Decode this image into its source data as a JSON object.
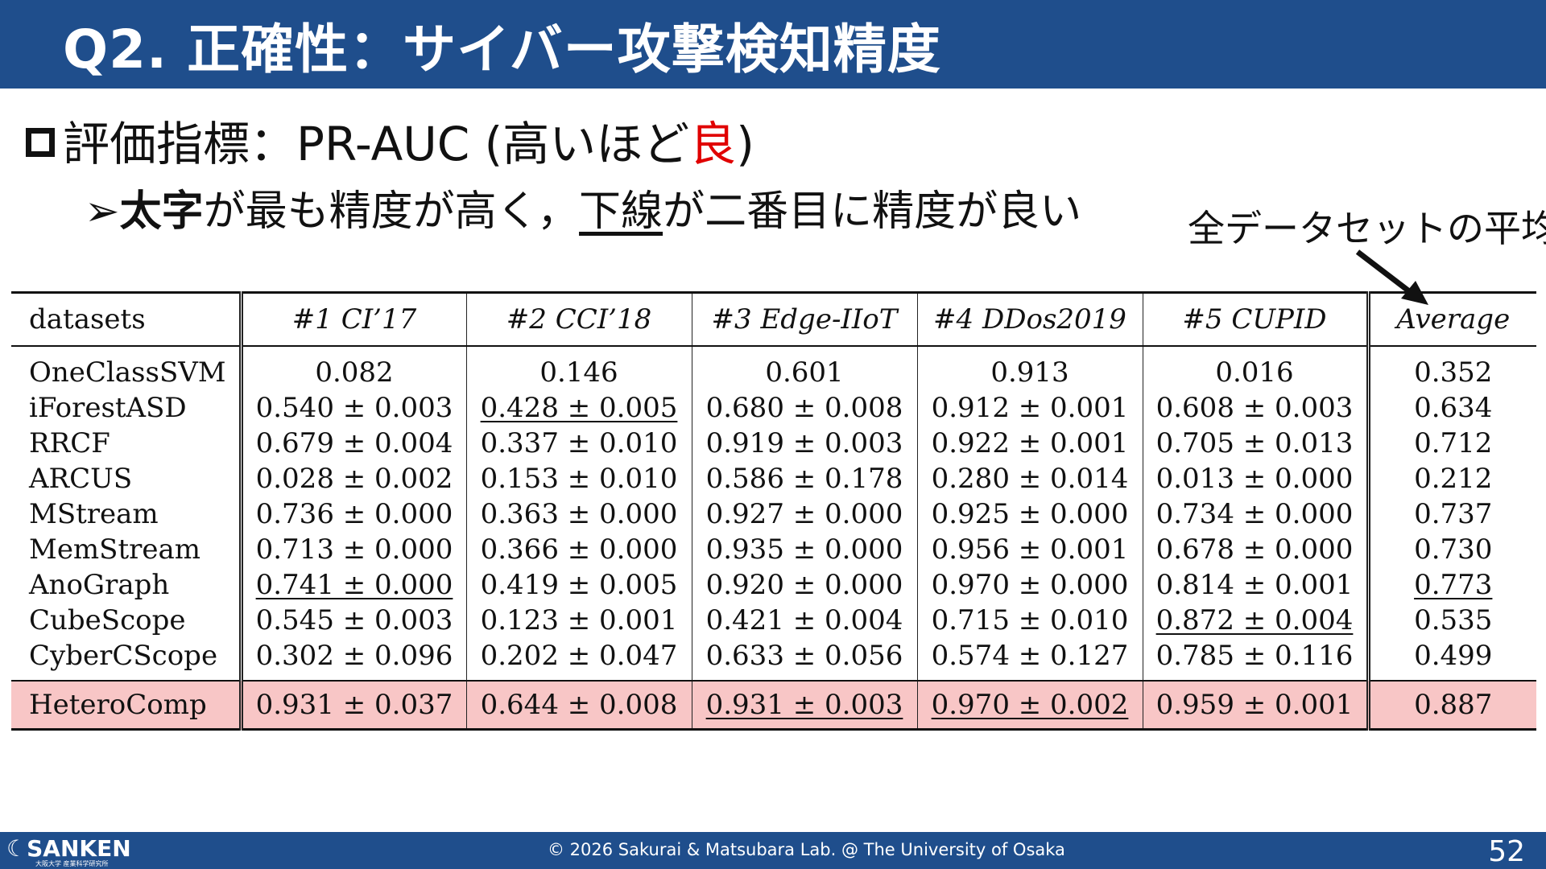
{
  "title": "Q2. 正確性：サイバー攻撃検知精度",
  "bullet": {
    "prefix": "評価指標：PR-AUC (高いほど",
    "red": "良",
    "suffix": ")"
  },
  "sub": {
    "arrow": "➢",
    "bold": "太字",
    "mid": "が最も精度が高く，",
    "underlined": "下線",
    "tail": "が二番目に精度が良い"
  },
  "note": "全データセットの平均",
  "table": {
    "headers": [
      "datasets",
      "#1 CI’17",
      "#2 CCI’18",
      "#3 Edge-IIoT",
      "#4 DDos2019",
      "#5 CUPID",
      "Average"
    ],
    "rows": [
      [
        "OneClassSVM",
        "0.082",
        "0.146",
        "0.601",
        "0.913",
        "0.016",
        "0.352"
      ],
      [
        "iForestASD",
        "0.540 ± 0.003",
        "0.428 ± 0.005",
        "0.680 ± 0.008",
        "0.912 ± 0.001",
        "0.608 ± 0.003",
        "0.634"
      ],
      [
        "RRCF",
        "0.679 ± 0.004",
        "0.337 ± 0.010",
        "0.919 ± 0.003",
        "0.922 ± 0.001",
        "0.705 ± 0.013",
        "0.712"
      ],
      [
        "ARCUS",
        "0.028 ± 0.002",
        "0.153 ± 0.010",
        "0.586 ± 0.178",
        "0.280 ± 0.014",
        "0.013 ± 0.000",
        "0.212"
      ],
      [
        "MStream",
        "0.736 ± 0.000",
        "0.363 ± 0.000",
        "0.927 ± 0.000",
        "0.925 ± 0.000",
        "0.734 ± 0.000",
        "0.737"
      ],
      [
        "MemStream",
        "0.713 ± 0.000",
        "0.366 ± 0.000",
        "0.935 ± 0.000",
        "0.956 ± 0.001",
        "0.678 ± 0.000",
        "0.730"
      ],
      [
        "AnoGraph",
        "0.741 ± 0.000",
        "0.419 ± 0.005",
        "0.920 ± 0.000",
        "0.970 ± 0.000",
        "0.814 ± 0.001",
        "0.773"
      ],
      [
        "CubeScope",
        "0.545 ± 0.003",
        "0.123 ± 0.001",
        "0.421 ± 0.004",
        "0.715 ± 0.010",
        "0.872 ± 0.004",
        "0.535"
      ],
      [
        "CyberCScope",
        "0.302 ± 0.096",
        "0.202 ± 0.047",
        "0.633 ± 0.056",
        "0.574 ± 0.127",
        "0.785 ± 0.116",
        "0.499"
      ]
    ],
    "hetero": [
      "HeteroComp",
      "0.931 ± 0.037",
      "0.644 ± 0.008",
      "0.931 ± 0.003",
      "0.970 ± 0.002",
      "0.959 ± 0.001",
      "0.887"
    ]
  },
  "footer": {
    "logo": "SANKEN",
    "logo_sub": "大阪大学 産業科学研究所",
    "copyright": "© 2026 Sakurai & Matsubara Lab. @ The University of Osaka",
    "page": "52"
  },
  "colors": {
    "header_bg": "#1f4e8c",
    "highlight_row": "#f8c6c6",
    "emphasis": "#e00000"
  }
}
